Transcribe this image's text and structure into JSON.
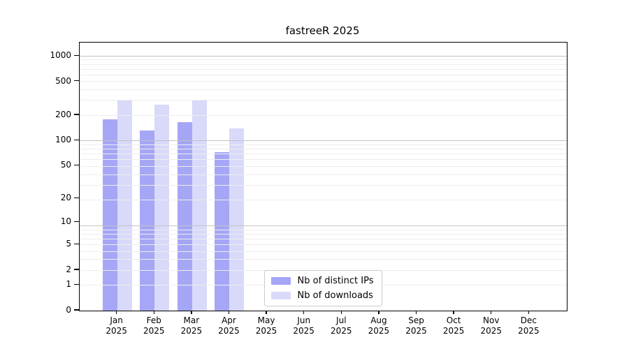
{
  "chart_data": {
    "type": "bar",
    "title": "fastreeR 2025",
    "categories": [
      "Jan",
      "Feb",
      "Mar",
      "Apr",
      "May",
      "Jun",
      "Jul",
      "Aug",
      "Sep",
      "Oct",
      "Nov",
      "Dec"
    ],
    "year": "2025",
    "series": [
      {
        "name": "Nb of distinct IPs",
        "key": "distinct-ips",
        "color": "#a6a6f6",
        "values": [
          178,
          131,
          164,
          73,
          0,
          0,
          0,
          0,
          0,
          0,
          0,
          0
        ]
      },
      {
        "name": "Nb of downloads",
        "key": "downloads",
        "color": "#d9d9fa",
        "values": [
          303,
          267,
          299,
          139,
          0,
          0,
          0,
          0,
          0,
          0,
          0,
          0
        ]
      }
    ],
    "y_ticks": [
      0,
      1,
      2,
      5,
      10,
      20,
      50,
      100,
      200,
      500,
      1000
    ],
    "y_scale": "log10(1+v)",
    "y_axis_max": 1440,
    "grid": {
      "major_color": "#c3c3c3",
      "minor_color": "#ededed",
      "major_lines_at": [
        9,
        99,
        999
      ],
      "minor_decades": [
        1,
        10,
        100
      ]
    },
    "legend": {
      "position": "lower center",
      "entries": [
        "Nb of distinct IPs",
        "Nb of downloads"
      ]
    }
  }
}
